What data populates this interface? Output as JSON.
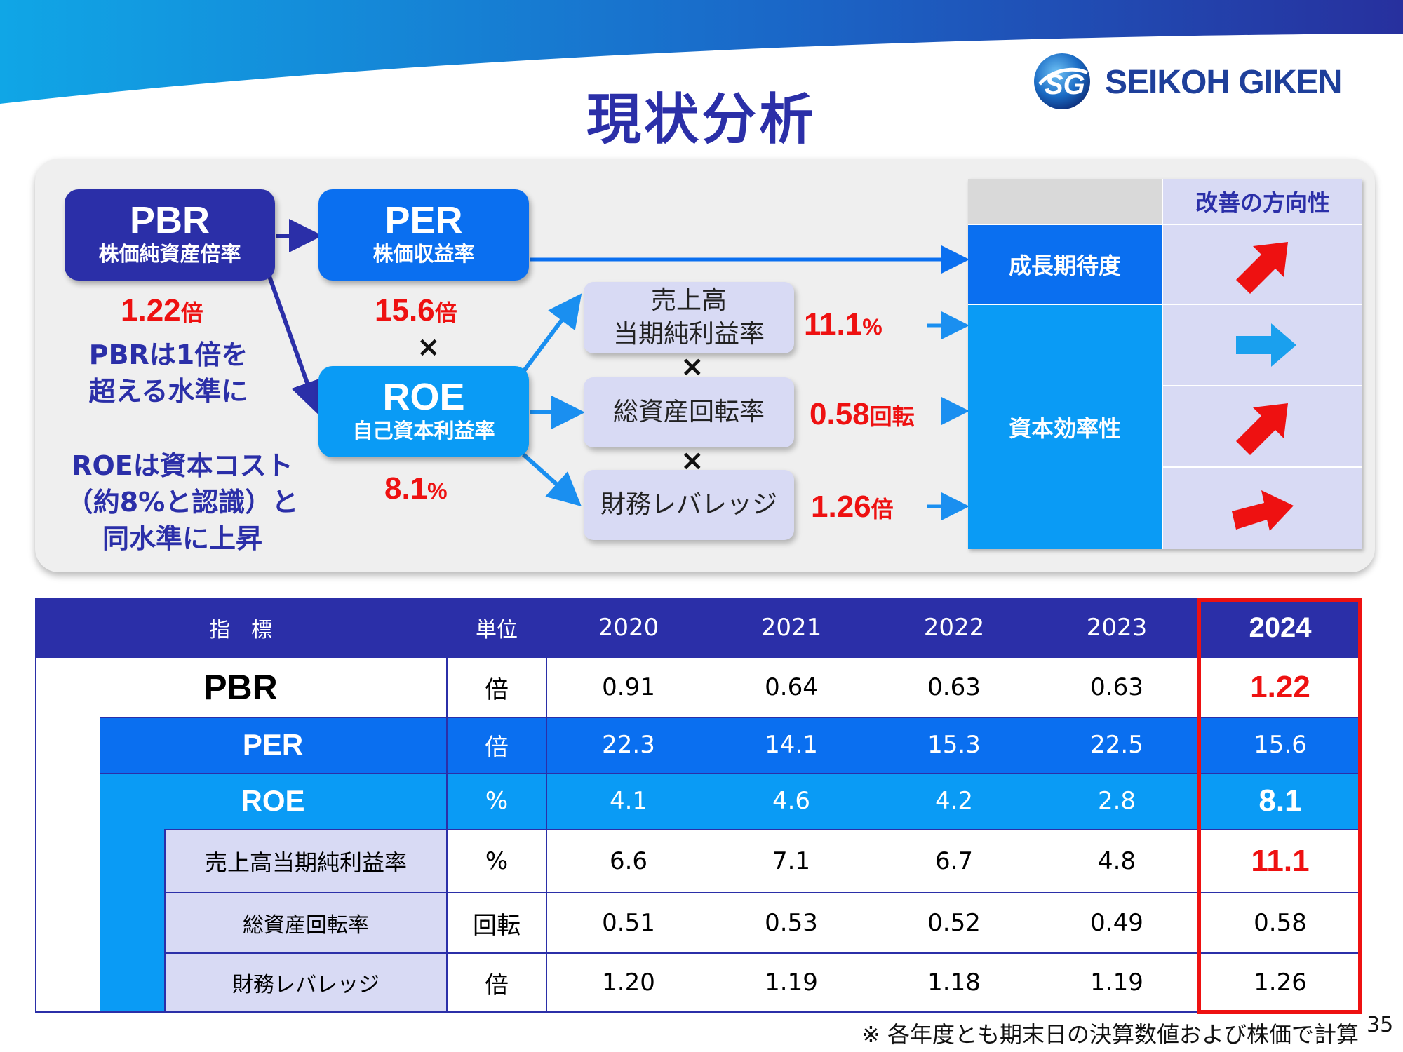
{
  "title": "現状分析",
  "logo": {
    "mark": "SG",
    "text": "SEIKOH GIKEN"
  },
  "diagram": {
    "pbr": {
      "label": "PBR",
      "sub": "株価純資産倍率",
      "value": "1.22",
      "unit": "倍"
    },
    "per": {
      "label": "PER",
      "sub": "株価収益率",
      "value": "15.6",
      "unit": "倍"
    },
    "roe": {
      "label": "ROE",
      "sub": "自己資本利益率",
      "value": "8.1",
      "unit": "%"
    },
    "times": "×",
    "note_pbr": [
      "PBRは1倍を",
      "超える水準に"
    ],
    "note_roe": [
      "ROEは資本コスト",
      "（約8%と認識）と",
      "同水準に上昇"
    ],
    "factors": [
      {
        "label_line1": "売上高",
        "label_line2": "当期純利益率",
        "value": "11.1",
        "unit": "%"
      },
      {
        "label_line1": "総資産回転率",
        "label_line2": "",
        "value": "0.58",
        "unit": "回転"
      },
      {
        "label_line1": "財務レバレッジ",
        "label_line2": "",
        "value": "1.26",
        "unit": "倍"
      }
    ],
    "direction_header": "改善の方向性",
    "growth_label": "成長期待度",
    "efficiency_label": "資本効率性",
    "directions": [
      "up-right",
      "right",
      "up-right",
      "slight-up-right"
    ],
    "arrow_red": "#ee1111",
    "arrow_blue": "#1aa0ee"
  },
  "table": {
    "header": {
      "indicator": "指　標",
      "unit": "単位",
      "years": [
        "2020",
        "2021",
        "2022",
        "2023",
        "2024"
      ]
    },
    "rows": [
      {
        "name": "PBR",
        "unit": "倍",
        "values": [
          "0.91",
          "0.64",
          "0.63",
          "0.63",
          "1.22"
        ]
      },
      {
        "name": "PER",
        "unit": "倍",
        "values": [
          "22.3",
          "14.1",
          "15.3",
          "22.5",
          "15.6"
        ]
      },
      {
        "name": "ROE",
        "unit": "%",
        "values": [
          "4.1",
          "4.6",
          "4.2",
          "2.8",
          "8.1"
        ]
      },
      {
        "name": "売上高当期純利益率",
        "unit": "%",
        "values": [
          "6.6",
          "7.1",
          "6.7",
          "4.8",
          "11.1"
        ]
      },
      {
        "name": "総資産回転率",
        "unit": "回転",
        "values": [
          "0.51",
          "0.53",
          "0.52",
          "0.49",
          "0.58"
        ]
      },
      {
        "name": "財務レバレッジ",
        "unit": "倍",
        "values": [
          "1.20",
          "1.19",
          "1.18",
          "1.19",
          "1.26"
        ]
      }
    ],
    "highlight_color": "#ee1111"
  },
  "footnote": "※ 各年度とも期末日の決算数値および株価で計算",
  "page_number": "35",
  "colors": {
    "navy": "#2b2fa8",
    "blue": "#0a6ff0",
    "sky": "#0a9bf5",
    "lavender": "#d8daf4"
  }
}
